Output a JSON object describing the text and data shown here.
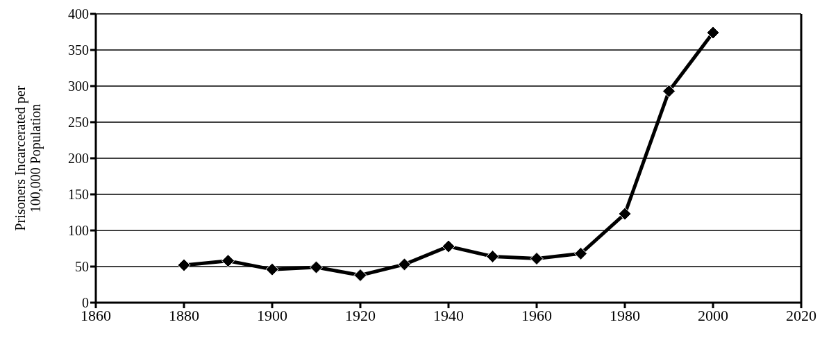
{
  "chart_data": {
    "type": "line",
    "ylabel": "Prisoners Incarcerated per 100,000 Population",
    "x": [
      1880,
      1890,
      1900,
      1910,
      1920,
      1930,
      1940,
      1950,
      1960,
      1970,
      1980,
      1990,
      2000
    ],
    "series": [
      {
        "color": "#000000",
        "values": [
          52,
          58,
          46,
          49,
          38,
          53,
          78,
          64,
          61,
          68,
          123,
          293,
          374
        ]
      }
    ],
    "xlim": [
      1860,
      2020
    ],
    "xticks": [
      1860,
      1880,
      1900,
      1920,
      1940,
      1960,
      1980,
      2000,
      2020
    ],
    "ylim": [
      0,
      400
    ],
    "yticks": [
      0,
      50,
      100,
      150,
      200,
      250,
      300,
      350,
      400
    ],
    "grid": "y",
    "legend": false,
    "marker": "diamond",
    "line_style": "solid"
  }
}
